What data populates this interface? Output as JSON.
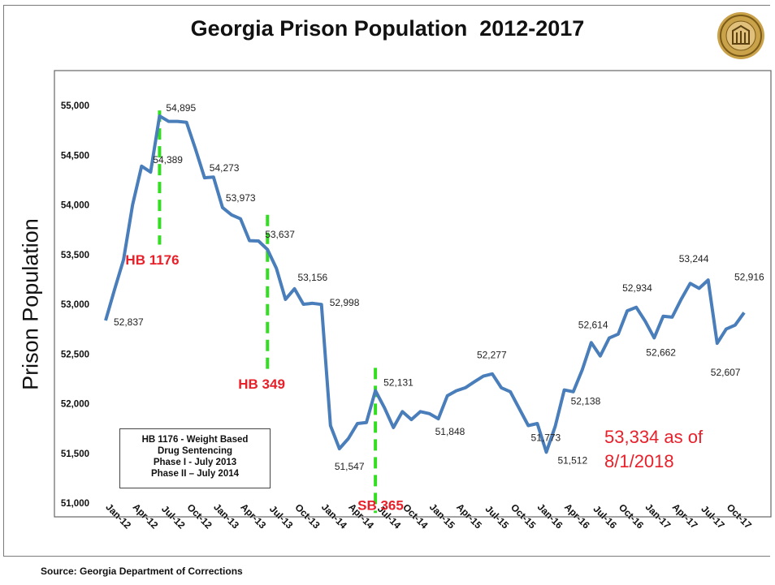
{
  "title": "Georgia Prison Population  2012-2017",
  "source": "Source: Georgia Department of Corrections",
  "colors": {
    "line": "#4a7ebb",
    "law_marker": "#33dd22",
    "law_label": "#e8202a",
    "text": "#111111"
  },
  "legal_box": {
    "lines": [
      "HB 1176 - Weight Based",
      "Drug Sentencing",
      "Phase I - July 2013",
      "Phase II – July 2014"
    ]
  },
  "as_of_note": {
    "lines": [
      "53,334 as of",
      "8/1/2018"
    ]
  },
  "chart_data": {
    "type": "line",
    "title": "Georgia Prison Population  2012-2017",
    "ylabel": "Prison Population",
    "xlabel": "",
    "ylim": [
      51000,
      55000
    ],
    "yticks": [
      51000,
      51500,
      52000,
      52500,
      53000,
      53500,
      54000,
      54500,
      55000
    ],
    "ytick_labels": [
      "51,000",
      "51,500",
      "52,000",
      "52,500",
      "53,000",
      "53,500",
      "54,000",
      "54,500",
      "55,000"
    ],
    "x": [
      "Jan-12",
      "Feb-12",
      "Mar-12",
      "Apr-12",
      "May-12",
      "Jun-12",
      "Jul-12",
      "Aug-12",
      "Sep-12",
      "Oct-12",
      "Nov-12",
      "Dec-12",
      "Jan-13",
      "Feb-13",
      "Mar-13",
      "Apr-13",
      "May-13",
      "Jun-13",
      "Jul-13",
      "Aug-13",
      "Sep-13",
      "Oct-13",
      "Nov-13",
      "Dec-13",
      "Jan-14",
      "Feb-14",
      "Mar-14",
      "Apr-14",
      "May-14",
      "Jun-14",
      "Jul-14",
      "Aug-14",
      "Sep-14",
      "Oct-14",
      "Nov-14",
      "Dec-14",
      "Jan-15",
      "Feb-15",
      "Mar-15",
      "Apr-15",
      "May-15",
      "Jun-15",
      "Jul-15",
      "Aug-15",
      "Sep-15",
      "Oct-15",
      "Nov-15",
      "Dec-15",
      "Jan-16",
      "Feb-16",
      "Mar-16",
      "Apr-16",
      "May-16",
      "Jun-16",
      "Jul-16",
      "Aug-16",
      "Sep-16",
      "Oct-16",
      "Nov-16",
      "Dec-16",
      "Jan-17",
      "Feb-17",
      "Mar-17",
      "Apr-17",
      "May-17",
      "Jun-17",
      "Jul-17",
      "Aug-17",
      "Sep-17",
      "Oct-17",
      "Nov-17",
      "Dec-17"
    ],
    "tick_labels": [
      "Jan-12",
      "Apr-12",
      "Jul-12",
      "Oct-12",
      "Jan-13",
      "Apr-13",
      "Jul-13",
      "Oct-13",
      "Jan-14",
      "Apr-14",
      "Jul-14",
      "Oct-14",
      "Jan-15",
      "Apr-15",
      "Jul-15",
      "Oct-15",
      "Jan-16",
      "Apr-16",
      "Jul-16",
      "Oct-16",
      "Jan-17",
      "Apr-17",
      "Jul-17",
      "Oct-17"
    ],
    "series": [
      {
        "values": [
          52837,
          53150,
          53450,
          54000,
          54389,
          54330,
          54895,
          54840,
          54840,
          54830,
          54560,
          54273,
          54280,
          53973,
          53900,
          53860,
          53640,
          53637,
          53550,
          53360,
          53050,
          53156,
          53000,
          53010,
          52998,
          51780,
          51547,
          51650,
          51800,
          51810,
          52131,
          51960,
          51760,
          51920,
          51840,
          51920,
          51900,
          51848,
          52080,
          52130,
          52160,
          52220,
          52277,
          52300,
          52160,
          52120,
          51950,
          51780,
          51800,
          51512,
          51773,
          52138,
          52120,
          52340,
          52614,
          52480,
          52660,
          52700,
          52934,
          52970,
          52830,
          52662,
          52880,
          52870,
          53050,
          53210,
          53160,
          53244,
          52607,
          52750,
          52790,
          52916
        ]
      }
    ],
    "data_labels": [
      {
        "x": "Jan-12",
        "text": "52,837"
      },
      {
        "x": "May-12",
        "text": "54,389"
      },
      {
        "x": "Jul-12",
        "text": "54,895"
      },
      {
        "x": "Dec-12",
        "text": "54,273"
      },
      {
        "x": "Feb-13",
        "text": "53,973"
      },
      {
        "x": "Jun-13",
        "text": "53,637"
      },
      {
        "x": "Oct-13",
        "text": "53,156"
      },
      {
        "x": "Jan-14",
        "text": "52,998"
      },
      {
        "x": "Mar-14",
        "text": "51,547"
      },
      {
        "x": "Jul-14",
        "text": "52,131"
      },
      {
        "x": "Feb-15",
        "text": "51,848"
      },
      {
        "x": "Jul-15",
        "text": "52,277"
      },
      {
        "x": "Mar-16",
        "text": "51,773"
      },
      {
        "x": "Feb-16",
        "text": "51,512"
      },
      {
        "x": "Apr-16",
        "text": "52,138"
      },
      {
        "x": "Jul-16",
        "text": "52,614"
      },
      {
        "x": "Nov-16",
        "text": "52,934"
      },
      {
        "x": "Feb-17",
        "text": "52,662"
      },
      {
        "x": "Aug-17",
        "text": "53,244"
      },
      {
        "x": "Sep-17",
        "text": "52,607"
      },
      {
        "x": "Dec-17",
        "text": "52,916"
      }
    ],
    "annotations": [
      {
        "text": "HB 1176",
        "x": "Jul-12"
      },
      {
        "text": "HB 349",
        "x": "Jul-13"
      },
      {
        "text": "SB 365",
        "x": "Jul-14"
      }
    ],
    "grid": false,
    "legend": "none"
  }
}
